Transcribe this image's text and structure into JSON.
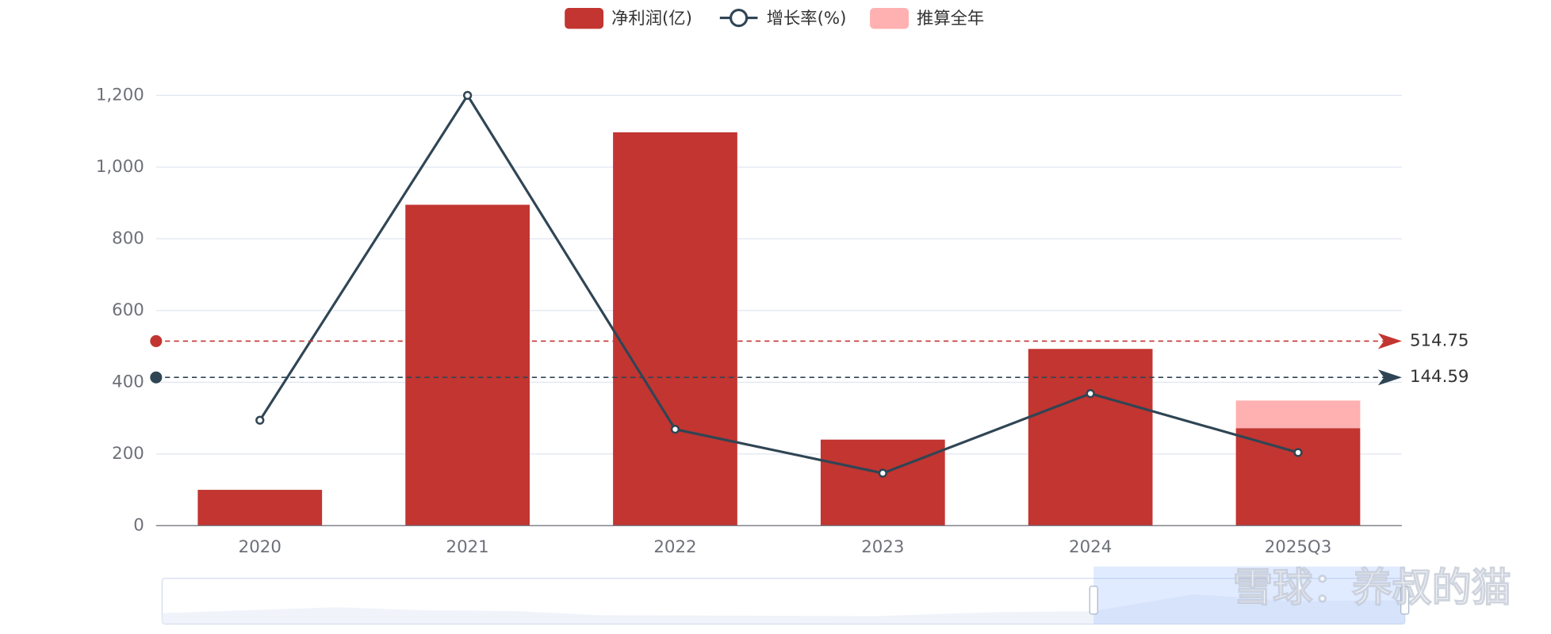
{
  "chart_data": {
    "type": "bar",
    "categories": [
      "2020",
      "2021",
      "2022",
      "2023",
      "2024",
      "2025Q3"
    ],
    "series": [
      {
        "name": "净利润(亿)",
        "type": "bar",
        "color": "#c23531",
        "values": [
          100,
          895,
          1097,
          240,
          493,
          272
        ]
      },
      {
        "name": "增长率(%)",
        "type": "line",
        "axis": "y2",
        "color": "#2f4554",
        "values": [
          45,
          800,
          24,
          -78,
          107,
          -30
        ]
      },
      {
        "name": "推算全年",
        "type": "bar",
        "stack_on": 0,
        "color": "#ffb0b0",
        "values": [
          null,
          null,
          null,
          null,
          null,
          77
        ]
      }
    ],
    "mark_lines": [
      {
        "series": 0,
        "value": 514.75,
        "color": "#c23531"
      },
      {
        "series": 1,
        "value": 144.59,
        "color": "#2f4554"
      }
    ],
    "ylim": [
      0,
      1200
    ],
    "yticks": [
      0,
      200,
      400,
      600,
      800,
      {
        "value": 1000,
        "label": "1,000"
      },
      {
        "value": 1200,
        "label": "1,200"
      }
    ],
    "y2lim": [
      -200,
      800
    ],
    "grid": true,
    "legend": "top",
    "watermark": "雪球：养叔的猫"
  }
}
